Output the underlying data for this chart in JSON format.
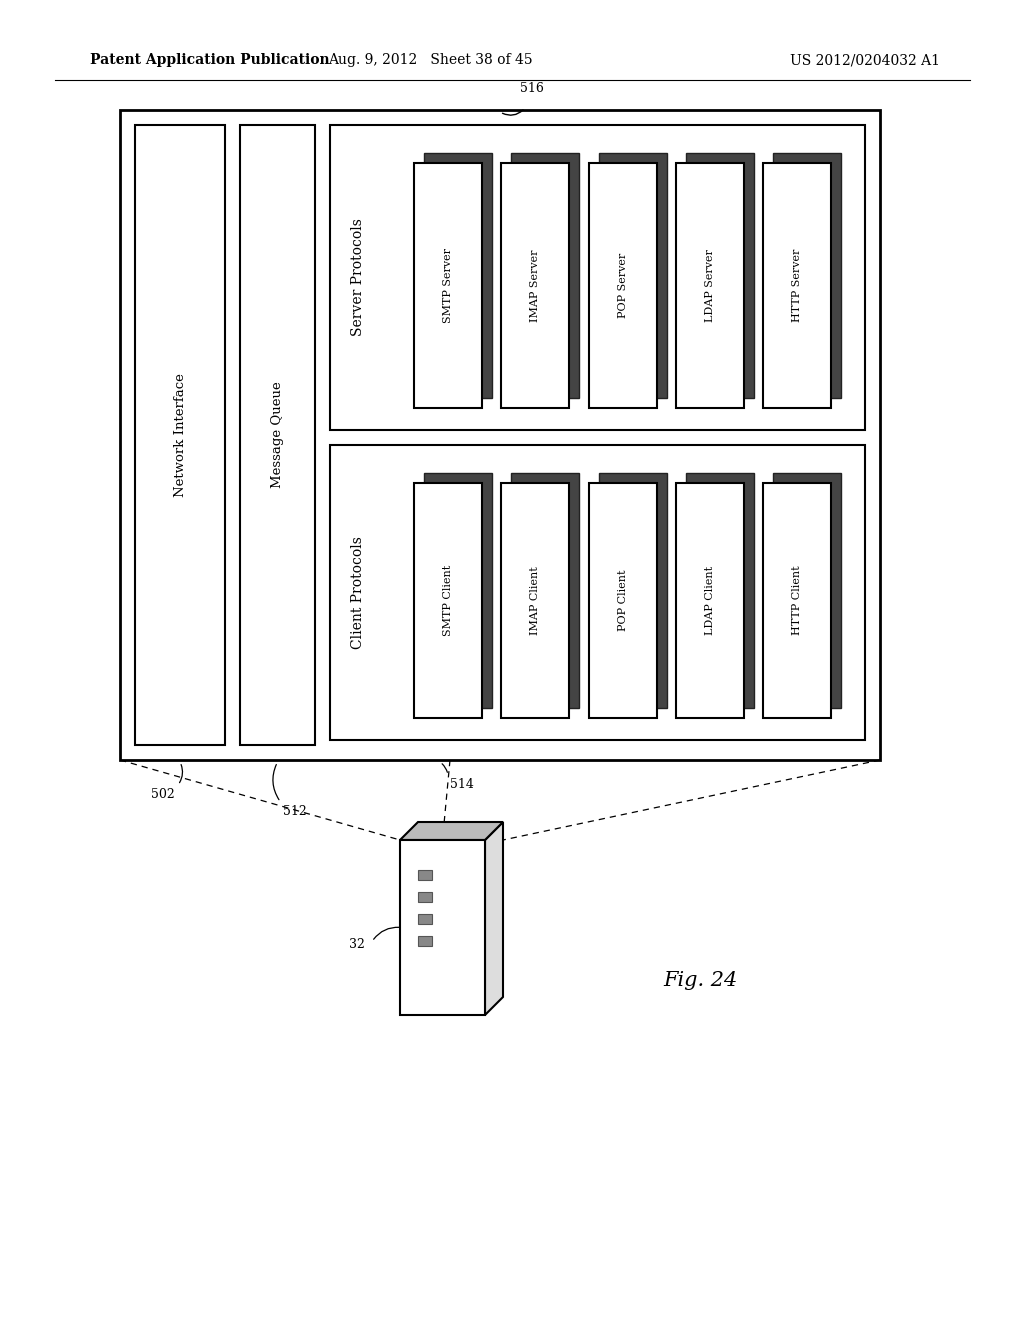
{
  "bg_color": "#ffffff",
  "header_left": "Patent Application Publication",
  "header_mid": "Aug. 9, 2012   Sheet 38 of 45",
  "header_right": "US 2012/0204032 A1",
  "fig_label": "Fig. 24",
  "server_labels": [
    "SMTP Server",
    "IMAP Server",
    "POP Server",
    "LDAP Server",
    "HTTP Server"
  ],
  "client_labels": [
    "SMTP Client",
    "IMAP Client",
    "POP Client",
    "LDAP Client",
    "HTTP Client"
  ]
}
